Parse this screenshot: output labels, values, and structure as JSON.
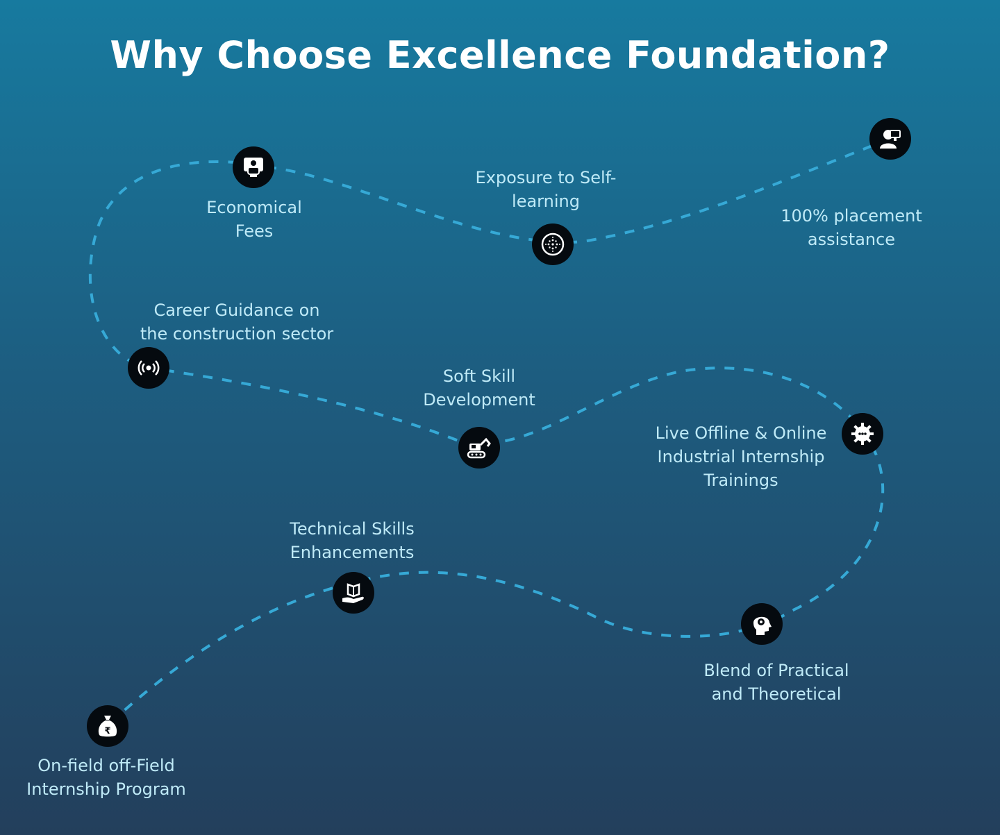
{
  "title": "Why Choose Excellence Foundation?",
  "colors": {
    "path": "#36a9d6",
    "label": "#bfeaf7",
    "node": "#050a0f",
    "icon": "#ffffff"
  },
  "steps": [
    {
      "icon": "presenter-icon",
      "label": [
        "Economical",
        "Fees"
      ]
    },
    {
      "icon": "dotted-circle-icon",
      "label": [
        "Exposure to Self-",
        "learning"
      ]
    },
    {
      "icon": "user-screen-icon",
      "label": [
        "100% placement",
        "assistance"
      ]
    },
    {
      "icon": "broadcast-icon",
      "label": [
        "Career Guidance on",
        "the construction sector"
      ]
    },
    {
      "icon": "excavator-icon",
      "label": [
        "Soft Skill",
        "Development"
      ]
    },
    {
      "icon": "gear-icon",
      "label": [
        "Live Offline & Online",
        "Industrial Internship",
        "Trainings"
      ]
    },
    {
      "icon": "book-hand-icon",
      "label": [
        "Technical Skills",
        "Enhancements"
      ]
    },
    {
      "icon": "head-gear-icon",
      "label": [
        "Blend of Practical",
        "and Theoretical"
      ]
    },
    {
      "icon": "money-bag-icon",
      "label": [
        "On-field off-Field",
        "Internship Program"
      ]
    }
  ]
}
